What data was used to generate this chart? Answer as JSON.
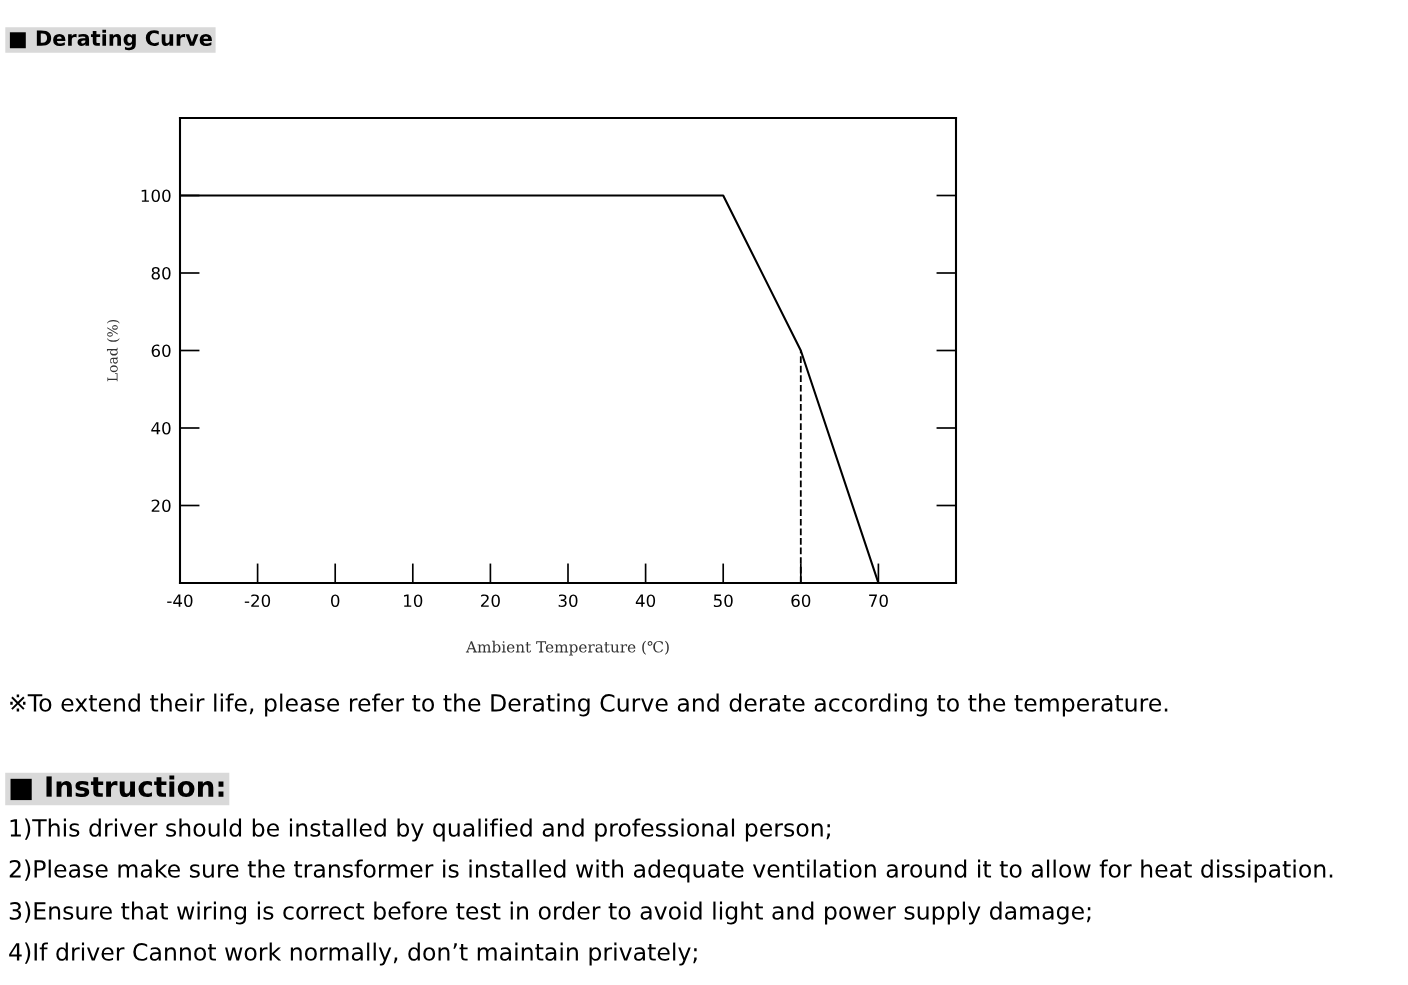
{
  "chart_data": {
    "type": "line",
    "title": "■ Derating Curve",
    "xlabel": "Ambient Temperature (℃)",
    "ylabel": "Load (%)",
    "categories": [
      "-40",
      "-20",
      "0",
      "10",
      "20",
      "30",
      "40",
      "50",
      "60",
      "70",
      null
    ],
    "series": [
      {
        "color": "#000000",
        "values": [
          100,
          100,
          100,
          100,
          100,
          100,
          100,
          100,
          60,
          0,
          null
        ]
      }
    ],
    "ylim": [
      0,
      120
    ],
    "yticks": [
      20,
      40,
      60,
      80,
      100
    ],
    "ref_lines": [
      {
        "axis": "x",
        "value": "60",
        "color": "#000000",
        "line_style": "dashed"
      }
    ],
    "grid": false,
    "marker": "none",
    "line_style": "solid",
    "annotations": [
      "※To extend their life, please refer to the Derating Curve and derate according to the temperature.",
      "■ Instruction:",
      "1)This driver should be installed by qualified and professional person;",
      "2)Please make sure the transformer is installed with adequate ventilation around it to allow for heat dissipation.",
      "3)Ensure that wiring is correct before test in order to avoid light and power supply damage;",
      "4)If driver Cannot work normally, don’t maintain privately;"
    ]
  }
}
